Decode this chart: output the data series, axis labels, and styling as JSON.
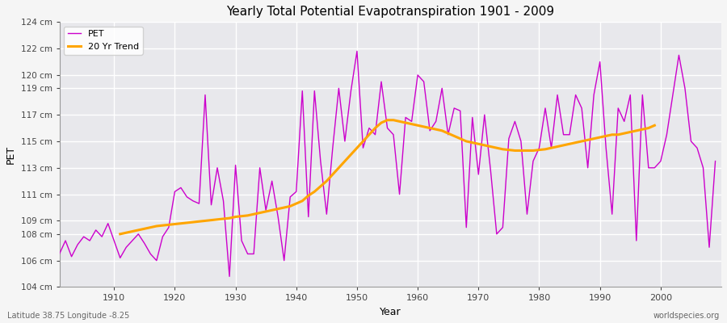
{
  "title": "Yearly Total Potential Evapotranspiration 1901 - 2009",
  "xlabel": "Year",
  "ylabel": "PET",
  "subtitle": "Latitude 38.75 Longitude -8.25",
  "watermark": "worldspecies.org",
  "pet_color": "#CC00CC",
  "trend_color": "#FFA500",
  "fig_facecolor": "#F5F5F5",
  "ax_facecolor": "#E8E8EC",
  "ylim": [
    104,
    124
  ],
  "ytick_values": [
    104,
    106,
    108,
    109,
    111,
    113,
    115,
    117,
    119,
    120,
    122,
    124
  ],
  "xtick_values": [
    1910,
    1920,
    1930,
    1940,
    1950,
    1960,
    1970,
    1980,
    1990,
    2000
  ],
  "years": [
    1901,
    1902,
    1903,
    1904,
    1905,
    1906,
    1907,
    1908,
    1909,
    1910,
    1911,
    1912,
    1913,
    1914,
    1915,
    1916,
    1917,
    1918,
    1919,
    1920,
    1921,
    1922,
    1923,
    1924,
    1925,
    1926,
    1927,
    1928,
    1929,
    1930,
    1931,
    1932,
    1933,
    1934,
    1935,
    1936,
    1937,
    1938,
    1939,
    1940,
    1941,
    1942,
    1943,
    1944,
    1945,
    1946,
    1947,
    1948,
    1949,
    1950,
    1951,
    1952,
    1953,
    1954,
    1955,
    1956,
    1957,
    1958,
    1959,
    1960,
    1961,
    1962,
    1963,
    1964,
    1965,
    1966,
    1967,
    1968,
    1969,
    1970,
    1971,
    1972,
    1973,
    1974,
    1975,
    1976,
    1977,
    1978,
    1979,
    1980,
    1981,
    1982,
    1983,
    1984,
    1985,
    1986,
    1987,
    1988,
    1989,
    1990,
    1991,
    1992,
    1993,
    1994,
    1995,
    1996,
    1997,
    1998,
    1999,
    2000,
    2001,
    2002,
    2003,
    2004,
    2005,
    2006,
    2007,
    2008,
    2009
  ],
  "pet_values": [
    106.5,
    107.5,
    106.3,
    107.2,
    107.8,
    107.5,
    108.3,
    107.8,
    108.8,
    107.5,
    106.2,
    107.0,
    107.5,
    108.0,
    107.3,
    106.5,
    106.0,
    107.8,
    108.5,
    111.2,
    111.5,
    110.8,
    110.5,
    110.3,
    118.5,
    110.2,
    113.0,
    110.5,
    104.8,
    113.2,
    107.5,
    106.5,
    106.5,
    113.0,
    109.8,
    112.0,
    109.3,
    106.0,
    110.8,
    111.2,
    118.8,
    109.3,
    118.8,
    113.5,
    109.5,
    114.5,
    119.0,
    115.0,
    118.8,
    121.8,
    114.5,
    116.0,
    115.5,
    119.5,
    116.0,
    115.5,
    111.0,
    116.8,
    116.5,
    120.0,
    119.5,
    115.8,
    116.5,
    119.0,
    115.5,
    117.5,
    117.3,
    108.5,
    116.8,
    112.5,
    117.0,
    112.8,
    108.0,
    108.5,
    115.2,
    116.5,
    115.0,
    109.5,
    113.5,
    114.5,
    117.5,
    114.5,
    118.5,
    115.5,
    115.5,
    118.5,
    117.5,
    113.0,
    118.5,
    121.0,
    114.5,
    109.5,
    117.5,
    116.5,
    118.5,
    107.5,
    118.5,
    113.0,
    113.0,
    113.5,
    115.5,
    118.5,
    121.5,
    119.0,
    115.0,
    114.5,
    113.0,
    107.0,
    113.5
  ],
  "trend_values": [
    null,
    null,
    null,
    null,
    null,
    null,
    null,
    null,
    null,
    null,
    108.0,
    108.1,
    108.2,
    108.3,
    108.4,
    108.5,
    108.6,
    108.65,
    108.7,
    108.75,
    108.8,
    108.85,
    108.9,
    108.95,
    109.0,
    109.05,
    109.1,
    109.15,
    109.2,
    109.3,
    109.35,
    109.4,
    109.5,
    109.6,
    109.7,
    109.8,
    109.9,
    110.0,
    110.1,
    110.3,
    110.5,
    110.9,
    111.2,
    111.6,
    112.0,
    112.5,
    113.0,
    113.5,
    114.0,
    114.5,
    115.0,
    115.5,
    116.0,
    116.4,
    116.6,
    116.6,
    116.5,
    116.4,
    116.3,
    116.2,
    116.1,
    116.0,
    115.9,
    115.8,
    115.6,
    115.4,
    115.2,
    115.0,
    114.9,
    114.8,
    114.7,
    114.6,
    114.5,
    114.4,
    114.35,
    114.3,
    114.3,
    114.3,
    114.3,
    114.35,
    114.4,
    114.5,
    114.6,
    114.7,
    114.8,
    114.9,
    115.0,
    115.1,
    115.2,
    115.3,
    115.4,
    115.5,
    115.5,
    115.6,
    115.7,
    115.8,
    115.9,
    116.0,
    116.2,
    null,
    null,
    null,
    null,
    null,
    null,
    null,
    null,
    null,
    null
  ]
}
